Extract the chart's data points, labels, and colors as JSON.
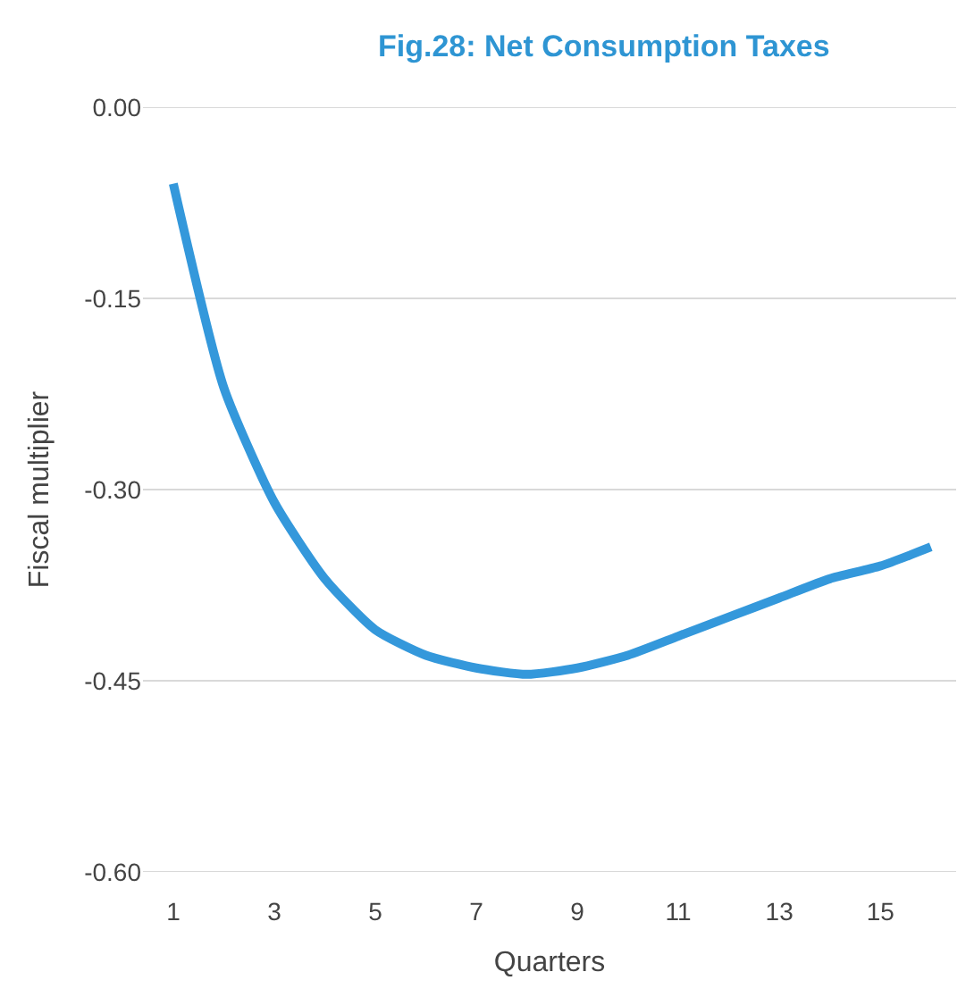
{
  "chart_data": {
    "type": "line",
    "title": "Fig.28: Net Consumption Taxes",
    "xlabel": "Quarters",
    "ylabel": "Fiscal multiplier",
    "x": [
      1,
      2,
      3,
      4,
      5,
      6,
      7,
      8,
      9,
      10,
      11,
      12,
      13,
      14,
      15,
      16
    ],
    "series": [
      {
        "color": "#3498db",
        "values": [
          -0.06,
          -0.22,
          -0.31,
          -0.37,
          -0.41,
          -0.43,
          -0.44,
          -0.445,
          -0.44,
          -0.43,
          -0.415,
          -0.4,
          -0.385,
          -0.37,
          -0.36,
          -0.345
        ]
      }
    ],
    "xlim": [
      0.4,
      16.5
    ],
    "xticks": [
      1,
      3,
      5,
      7,
      9,
      11,
      13,
      15
    ],
    "ylim": [
      -0.6,
      0
    ],
    "yticks": [
      {
        "value": -0.6,
        "label": "-0.60"
      },
      {
        "value": -0.45,
        "label": "-0.45"
      },
      {
        "value": -0.3,
        "label": "-0.30"
      },
      {
        "value": -0.15,
        "label": "-0.15"
      },
      {
        "value": 0,
        "label": "0.00"
      }
    ],
    "grid": "y",
    "marker": "none",
    "line_style": "solid"
  }
}
